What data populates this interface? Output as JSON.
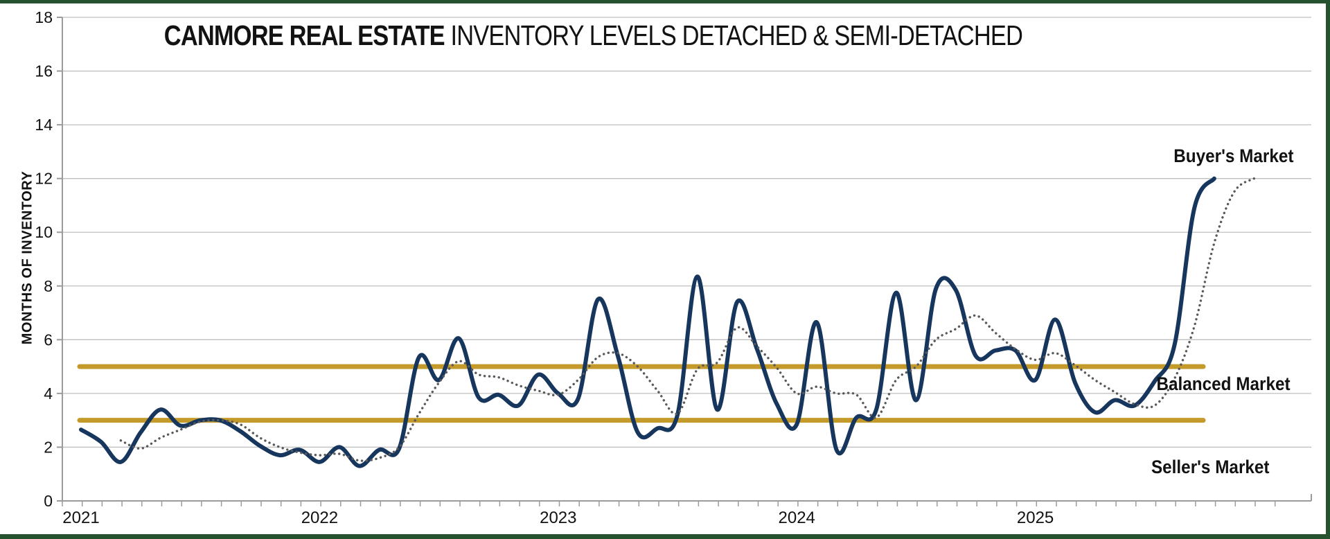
{
  "title": {
    "bold": "CANMORE REAL ESTATE",
    "regular": " INVENTORY LEVELS DETACHED & SEMI-DETACHED"
  },
  "chart_data": {
    "type": "line",
    "title": "CANMORE REAL ESTATE INVENTORY LEVELS DETACHED & SEMI-DETACHED",
    "ylabel": "MONTHS OF INVENTORY",
    "xlabel": "",
    "ylim": [
      0,
      18
    ],
    "y_ticks": [
      0,
      2,
      4,
      6,
      8,
      10,
      12,
      14,
      16,
      18
    ],
    "x_tick_labels": [
      "2021",
      "2022",
      "2023",
      "2024",
      "2025"
    ],
    "x_start": "2021-01",
    "x_step": "1 month",
    "grid": "horizontal",
    "legend": "none",
    "series": [
      {
        "name": "solid-navy",
        "style": "solid",
        "color": "#17365d",
        "values": [
          2.65,
          2.2,
          1.45,
          2.55,
          3.4,
          2.8,
          3.0,
          3.0,
          2.6,
          2.05,
          1.7,
          1.9,
          1.45,
          2.0,
          1.3,
          1.9,
          1.95,
          5.35,
          4.5,
          6.05,
          3.85,
          3.95,
          3.55,
          4.7,
          4.0,
          3.8,
          7.5,
          5.4,
          2.55,
          2.7,
          3.2,
          8.35,
          3.4,
          7.4,
          5.65,
          3.6,
          2.85,
          6.65,
          1.9,
          3.1,
          3.4,
          7.75,
          3.75,
          7.9,
          7.85,
          5.4,
          5.6,
          5.6,
          4.5,
          6.75,
          4.4,
          3.3,
          3.75,
          3.55,
          4.45,
          5.8,
          10.9,
          12.0,
          null,
          null
        ]
      },
      {
        "name": "dotted-gray",
        "style": "dotted",
        "color": "#595959",
        "values": [
          null,
          null,
          2.25,
          1.95,
          2.35,
          2.65,
          2.95,
          3.0,
          2.85,
          2.35,
          2.0,
          1.8,
          1.7,
          1.75,
          1.5,
          1.6,
          2.0,
          3.25,
          4.4,
          5.2,
          4.7,
          4.6,
          4.3,
          4.1,
          3.95,
          4.5,
          5.35,
          5.5,
          5.0,
          4.1,
          3.25,
          4.9,
          5.15,
          6.45,
          5.75,
          4.95,
          4.0,
          4.25,
          4.0,
          3.95,
          3.1,
          4.5,
          5.0,
          6.0,
          6.4,
          6.9,
          6.25,
          5.65,
          5.25,
          5.5,
          5.05,
          4.5,
          4.05,
          3.6,
          3.55,
          4.55,
          6.5,
          9.6,
          11.5,
          12.0
        ]
      }
    ],
    "reference_lines": [
      {
        "value": 5,
        "color": "#c49b2b"
      },
      {
        "value": 3,
        "color": "#c49b2b"
      }
    ],
    "annotations": [
      {
        "text": "Buyer's Market",
        "region": "above 5, upper right"
      },
      {
        "text": "Balanced Market",
        "region": "between 3 and 5, right"
      },
      {
        "text": "Seller's Market",
        "region": "below 3, lower right"
      }
    ]
  },
  "colors": {
    "frame_border": "#26522f",
    "gridline": "#bfbfbf",
    "axis": "#9b9b9b",
    "text": "#121212"
  }
}
